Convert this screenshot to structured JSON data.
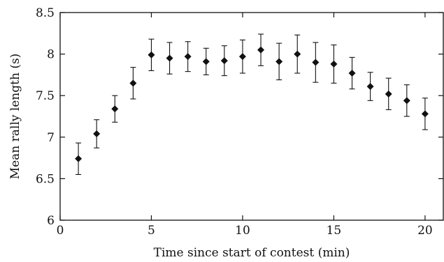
{
  "chart_data": {
    "type": "scatter",
    "title": "",
    "xlabel": "Time since start of contest (min)",
    "ylabel": "Mean rally length (s)",
    "xlim": [
      0,
      21
    ],
    "ylim": [
      6,
      8.5
    ],
    "xticks": [
      0,
      5,
      10,
      15,
      20
    ],
    "yticks": [
      6,
      6.5,
      7,
      7.5,
      8,
      8.5
    ],
    "xtick_labels": [
      "0",
      "5",
      "10",
      "15",
      "20"
    ],
    "ytick_labels": [
      "6",
      "6.5",
      "7",
      "7.5",
      "8",
      "8.5"
    ],
    "grid": false,
    "marker": "diamond",
    "color": "#111111",
    "points": [
      {
        "x": 1,
        "y": 6.74,
        "err_low": 6.55,
        "err_high": 6.93
      },
      {
        "x": 2,
        "y": 7.04,
        "err_low": 6.87,
        "err_high": 7.21
      },
      {
        "x": 3,
        "y": 7.34,
        "err_low": 7.18,
        "err_high": 7.5
      },
      {
        "x": 4,
        "y": 7.65,
        "err_low": 7.46,
        "err_high": 7.84
      },
      {
        "x": 5,
        "y": 7.99,
        "err_low": 7.8,
        "err_high": 8.18
      },
      {
        "x": 6,
        "y": 7.95,
        "err_low": 7.76,
        "err_high": 8.14
      },
      {
        "x": 7,
        "y": 7.97,
        "err_low": 7.79,
        "err_high": 8.15
      },
      {
        "x": 8,
        "y": 7.91,
        "err_low": 7.75,
        "err_high": 8.07
      },
      {
        "x": 9,
        "y": 7.92,
        "err_low": 7.74,
        "err_high": 8.1
      },
      {
        "x": 10,
        "y": 7.97,
        "err_low": 7.77,
        "err_high": 8.17
      },
      {
        "x": 11,
        "y": 8.05,
        "err_low": 7.86,
        "err_high": 8.24
      },
      {
        "x": 12,
        "y": 7.91,
        "err_low": 7.69,
        "err_high": 8.13
      },
      {
        "x": 13,
        "y": 8.0,
        "err_low": 7.77,
        "err_high": 8.23
      },
      {
        "x": 14,
        "y": 7.9,
        "err_low": 7.66,
        "err_high": 8.14
      },
      {
        "x": 15,
        "y": 7.88,
        "err_low": 7.65,
        "err_high": 8.11
      },
      {
        "x": 16,
        "y": 7.77,
        "err_low": 7.58,
        "err_high": 7.96
      },
      {
        "x": 17,
        "y": 7.61,
        "err_low": 7.44,
        "err_high": 7.78
      },
      {
        "x": 18,
        "y": 7.52,
        "err_low": 7.33,
        "err_high": 7.71
      },
      {
        "x": 19,
        "y": 7.44,
        "err_low": 7.25,
        "err_high": 7.63
      },
      {
        "x": 20,
        "y": 7.28,
        "err_low": 7.09,
        "err_high": 7.47
      }
    ]
  }
}
